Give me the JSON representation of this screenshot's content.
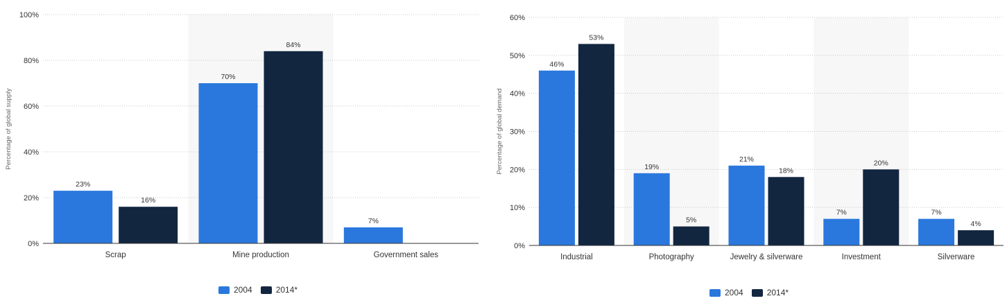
{
  "colors": {
    "c2004": "#2a78dd",
    "c2014": "#122640",
    "band": "#f7f7f7",
    "grid": "#c8c8c8",
    "text": "#333333"
  },
  "chart_data": [
    {
      "type": "bar",
      "title": "",
      "xlabel": "",
      "ylabel": "Percentage of global supply",
      "ylim": [
        0,
        100
      ],
      "yticks": [
        "0%",
        "20%",
        "40%",
        "60%",
        "80%",
        "100%"
      ],
      "yticks_values": [
        0,
        20,
        40,
        60,
        80,
        100
      ],
      "categories": [
        "Scrap",
        "Mine production",
        "Government sales"
      ],
      "series": [
        {
          "name": "2004",
          "color": "#2a78dd",
          "values": [
            23,
            70,
            7
          ],
          "labels": [
            "23%",
            "70%",
            "7%"
          ]
        },
        {
          "name": "2014*",
          "color": "#122640",
          "values": [
            16,
            84,
            0
          ],
          "labels": [
            "16%",
            "84%",
            ""
          ]
        }
      ],
      "grid": true,
      "legend": "bottom-center"
    },
    {
      "type": "bar",
      "title": "",
      "xlabel": "",
      "ylabel": "Percentage of global demand",
      "ylim": [
        0,
        60
      ],
      "yticks": [
        "0%",
        "10%",
        "20%",
        "30%",
        "40%",
        "50%",
        "60%"
      ],
      "yticks_values": [
        0,
        10,
        20,
        30,
        40,
        50,
        60
      ],
      "categories": [
        "Industrial",
        "Photography",
        "Jewelry & silverware",
        "Investment",
        "Silverware"
      ],
      "series": [
        {
          "name": "2004",
          "color": "#2a78dd",
          "values": [
            46,
            19,
            21,
            7,
            7
          ],
          "labels": [
            "46%",
            "19%",
            "21%",
            "7%",
            "7%"
          ]
        },
        {
          "name": "2014*",
          "color": "#122640",
          "values": [
            53,
            5,
            18,
            20,
            4
          ],
          "labels": [
            "53%",
            "5%",
            "18%",
            "20%",
            "4%"
          ]
        }
      ],
      "grid": true,
      "legend": "bottom-center"
    }
  ]
}
